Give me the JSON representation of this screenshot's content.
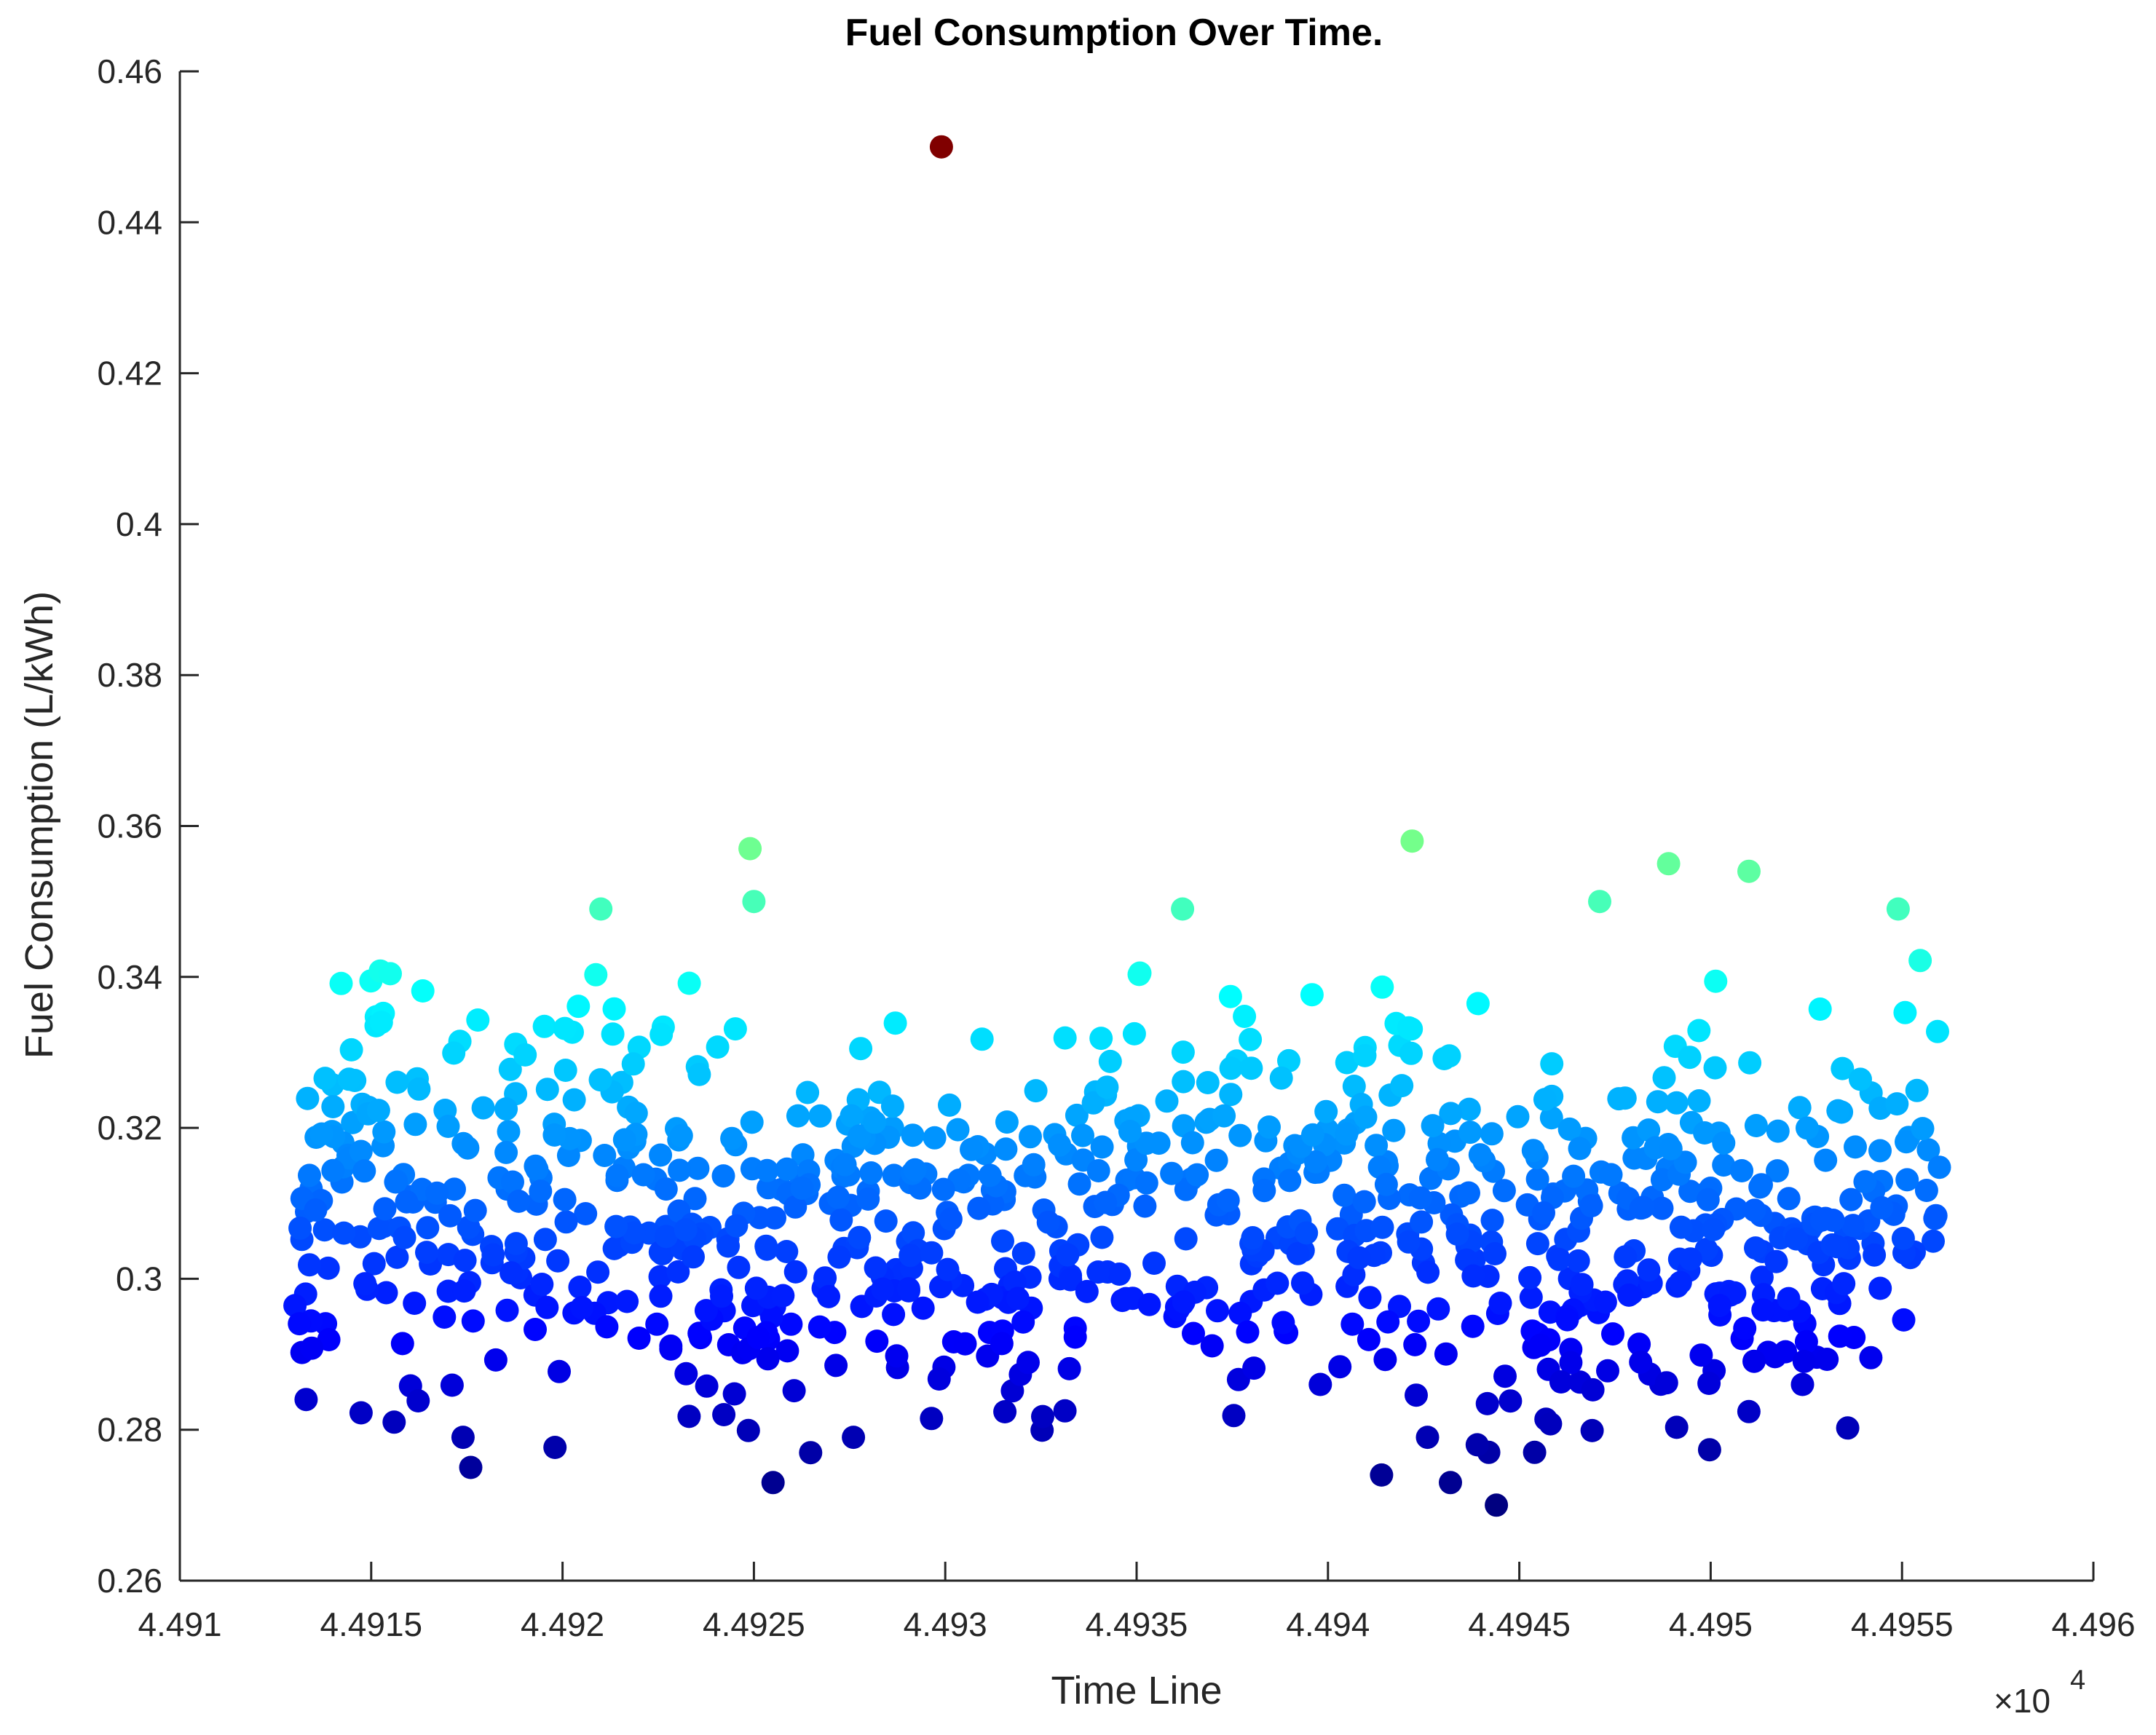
{
  "chart_data": {
    "type": "scatter",
    "title": "Fuel Consumption Over Time.",
    "xlabel": "Time Line",
    "ylabel": "Fuel Consumption (L/kWh)",
    "x_exponent_label": "×10",
    "x_exponent_power": "4",
    "xlim": [
      44910,
      44960
    ],
    "ylim": [
      0.26,
      0.46
    ],
    "x_ticks": [
      44910,
      44915,
      44920,
      44925,
      44930,
      44935,
      44940,
      44945,
      44950,
      44955,
      44960
    ],
    "x_tick_labels": [
      "4.491",
      "4.4915",
      "4.492",
      "4.4925",
      "4.493",
      "4.4935",
      "4.494",
      "4.4945",
      "4.495",
      "4.4955",
      "4.496"
    ],
    "y_ticks": [
      0.26,
      0.28,
      0.3,
      0.32,
      0.34,
      0.36,
      0.38,
      0.4,
      0.42,
      0.44,
      0.46
    ],
    "y_tick_labels": [
      "0.26",
      "0.28",
      "0.3",
      "0.32",
      "0.34",
      "0.36",
      "0.38",
      "0.4",
      "0.42",
      "0.44",
      "0.46"
    ],
    "grid": false,
    "colormap": "jet, colored by y value",
    "x_start": 44913.0,
    "x_end": 44956.0,
    "points": [
      [
        44929.9,
        0.45
      ],
      [
        44924.9,
        0.357
      ],
      [
        44942.2,
        0.358
      ],
      [
        44948.9,
        0.355
      ],
      [
        44951.0,
        0.354
      ],
      [
        44921.0,
        0.349
      ],
      [
        44925.0,
        0.35
      ],
      [
        44936.2,
        0.349
      ],
      [
        44947.1,
        0.35
      ],
      [
        44954.9,
        0.349
      ],
      [
        44925.5,
        0.273
      ],
      [
        44917.6,
        0.275
      ],
      [
        44943.2,
        0.273
      ],
      [
        44941.4,
        0.274
      ],
      [
        44944.4,
        0.27
      ],
      [
        44917.4,
        0.279
      ],
      [
        44944.2,
        0.277
      ],
      [
        44945.4,
        0.277
      ],
      [
        44942.6,
        0.279
      ],
      [
        44943.9,
        0.278
      ],
      [
        44915.6,
        0.281
      ],
      [
        44927.6,
        0.279
      ],
      [
        44913.3,
        0.284
      ],
      [
        44952.4,
        0.286
      ],
      [
        44939.8,
        0.286
      ],
      [
        44927.0,
        0.31
      ],
      [
        44931.5,
        0.305
      ],
      [
        44933.0,
        0.3
      ],
      [
        44936.0,
        0.295
      ],
      [
        44938.0,
        0.302
      ],
      [
        44940.5,
        0.299
      ],
      [
        44946.0,
        0.303
      ],
      [
        44948.0,
        0.316
      ],
      [
        44950.0,
        0.312
      ],
      [
        44953.0,
        0.308
      ]
    ],
    "series_seed": 4491
  }
}
